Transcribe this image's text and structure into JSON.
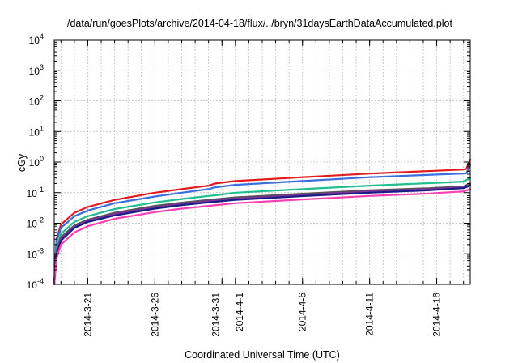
{
  "chart_data": {
    "type": "line",
    "title": "/data/run/goesPlots/archive/2014-04-18/flux/../bryn/31daysEarthDataAccumulated.plot",
    "xlabel": "Coordinated Universal Time (UTC)",
    "ylabel": "cGy",
    "y_scale": "log",
    "ylim": [
      0.0001,
      10000
    ],
    "xlim": [
      "2014-03-18T12:00",
      "2014-04-18T12:00"
    ],
    "grid": true,
    "legend": "none",
    "y_ticks": [
      {
        "base": "10",
        "exp": "-4",
        "value": 0.0001
      },
      {
        "base": "10",
        "exp": "-3",
        "value": 0.001
      },
      {
        "base": "10",
        "exp": "-2",
        "value": 0.01
      },
      {
        "base": "10",
        "exp": "-1",
        "value": 0.1
      },
      {
        "base": "10",
        "exp": "0",
        "value": 1
      },
      {
        "base": "10",
        "exp": "1",
        "value": 10
      },
      {
        "base": "10",
        "exp": "2",
        "value": 100
      },
      {
        "base": "10",
        "exp": "3",
        "value": 1000
      },
      {
        "base": "10",
        "exp": "4",
        "value": 10000
      }
    ],
    "x_ticks": [
      {
        "label": "2014-3-21",
        "x": "2014-03-21"
      },
      {
        "label": "2014-3-26",
        "x": "2014-03-26"
      },
      {
        "label": "2014-3-31",
        "x": "2014-03-31"
      },
      {
        "label": "2014-4-1",
        "x": "2014-04-01"
      },
      {
        "label": "2014-4-6",
        "x": "2014-04-06"
      },
      {
        "label": "2014-4-11",
        "x": "2014-04-11"
      },
      {
        "label": "2014-4-16",
        "x": "2014-04-16"
      }
    ],
    "series": [
      {
        "color": "#e41a1c",
        "points": [
          [
            "2014-03-18T12:00",
            0.0001
          ],
          [
            "2014-03-18T16:00",
            0.003
          ],
          [
            "2014-03-19T00:00",
            0.009
          ],
          [
            "2014-03-20T00:00",
            0.022
          ],
          [
            "2014-03-21T00:00",
            0.034
          ],
          [
            "2014-03-23T00:00",
            0.058
          ],
          [
            "2014-03-26T00:00",
            0.1
          ],
          [
            "2014-03-28T00:00",
            0.13
          ],
          [
            "2014-03-30T00:00",
            0.17
          ],
          [
            "2014-03-30T12:00",
            0.2
          ],
          [
            "2014-04-01T00:00",
            0.24
          ],
          [
            "2014-04-06T00:00",
            0.32
          ],
          [
            "2014-04-11T00:00",
            0.42
          ],
          [
            "2014-04-16T00:00",
            0.52
          ],
          [
            "2014-04-18T00:00",
            0.57
          ],
          [
            "2014-04-18T05:00",
            0.6
          ],
          [
            "2014-04-18T12:00",
            1.2
          ]
        ]
      },
      {
        "color": "#3b6fe0",
        "points": [
          [
            "2014-03-18T12:00",
            0.0001
          ],
          [
            "2014-03-18T16:00",
            0.0025
          ],
          [
            "2014-03-19T00:00",
            0.007
          ],
          [
            "2014-03-20T00:00",
            0.017
          ],
          [
            "2014-03-21T00:00",
            0.026
          ],
          [
            "2014-03-23T00:00",
            0.045
          ],
          [
            "2014-03-26T00:00",
            0.075
          ],
          [
            "2014-03-28T00:00",
            0.1
          ],
          [
            "2014-03-30T00:00",
            0.13
          ],
          [
            "2014-03-30T12:00",
            0.15
          ],
          [
            "2014-04-01T00:00",
            0.18
          ],
          [
            "2014-04-06T00:00",
            0.24
          ],
          [
            "2014-04-11T00:00",
            0.32
          ],
          [
            "2014-04-16T00:00",
            0.39
          ],
          [
            "2014-04-18T00:00",
            0.42
          ],
          [
            "2014-04-18T05:00",
            0.43
          ],
          [
            "2014-04-18T12:00",
            0.8
          ]
        ]
      },
      {
        "color": "#1fbf8f",
        "points": [
          [
            "2014-03-18T12:00",
            0.0001
          ],
          [
            "2014-03-18T16:00",
            0.0015
          ],
          [
            "2014-03-19T00:00",
            0.0045
          ],
          [
            "2014-03-20T00:00",
            0.011
          ],
          [
            "2014-03-21T00:00",
            0.017
          ],
          [
            "2014-03-23T00:00",
            0.029
          ],
          [
            "2014-03-26T00:00",
            0.048
          ],
          [
            "2014-03-28T00:00",
            0.062
          ],
          [
            "2014-03-30T00:00",
            0.078
          ],
          [
            "2014-03-30T12:00",
            0.082
          ],
          [
            "2014-04-01T00:00",
            0.1
          ],
          [
            "2014-04-06T00:00",
            0.13
          ],
          [
            "2014-04-11T00:00",
            0.17
          ],
          [
            "2014-04-16T00:00",
            0.21
          ],
          [
            "2014-04-18T00:00",
            0.23
          ],
          [
            "2014-04-18T12:00",
            0.3
          ]
        ]
      },
      {
        "color": "#555555",
        "points": [
          [
            "2014-03-18T12:00",
            0.0001
          ],
          [
            "2014-03-18T16:00",
            0.0012
          ],
          [
            "2014-03-19T00:00",
            0.0035
          ],
          [
            "2014-03-20T00:00",
            0.0085
          ],
          [
            "2014-03-21T00:00",
            0.013
          ],
          [
            "2014-03-23T00:00",
            0.022
          ],
          [
            "2014-03-26T00:00",
            0.037
          ],
          [
            "2014-03-28T00:00",
            0.047
          ],
          [
            "2014-03-30T00:00",
            0.058
          ],
          [
            "2014-04-01T00:00",
            0.07
          ],
          [
            "2014-04-06T00:00",
            0.092
          ],
          [
            "2014-04-11T00:00",
            0.12
          ],
          [
            "2014-04-15T12:00",
            0.14
          ],
          [
            "2014-04-16T00:00",
            0.145
          ],
          [
            "2014-04-18T00:00",
            0.16
          ],
          [
            "2014-04-18T12:00",
            0.2
          ]
        ]
      },
      {
        "color": "#7b3294",
        "points": [
          [
            "2014-03-18T12:00",
            0.0001
          ],
          [
            "2014-03-18T16:00",
            0.001
          ],
          [
            "2014-03-19T00:00",
            0.003
          ],
          [
            "2014-03-20T00:00",
            0.0075
          ],
          [
            "2014-03-21T00:00",
            0.012
          ],
          [
            "2014-03-23T00:00",
            0.02
          ],
          [
            "2014-03-26T00:00",
            0.033
          ],
          [
            "2014-03-28T00:00",
            0.043
          ],
          [
            "2014-03-30T00:00",
            0.053
          ],
          [
            "2014-04-01T00:00",
            0.064
          ],
          [
            "2014-04-06T00:00",
            0.084
          ],
          [
            "2014-04-11T00:00",
            0.11
          ],
          [
            "2014-04-15T12:00",
            0.13
          ],
          [
            "2014-04-16T00:00",
            0.134
          ],
          [
            "2014-04-18T00:00",
            0.15
          ],
          [
            "2014-04-18T12:00",
            0.18
          ]
        ]
      },
      {
        "color": "#1a1a8a",
        "points": [
          [
            "2014-03-18T12:00",
            0.0001
          ],
          [
            "2014-03-18T16:00",
            0.0009
          ],
          [
            "2014-03-19T00:00",
            0.0027
          ],
          [
            "2014-03-20T00:00",
            0.007
          ],
          [
            "2014-03-21T00:00",
            0.011
          ],
          [
            "2014-03-23T00:00",
            0.018
          ],
          [
            "2014-03-26T00:00",
            0.03
          ],
          [
            "2014-03-28T00:00",
            0.039
          ],
          [
            "2014-03-30T00:00",
            0.048
          ],
          [
            "2014-04-01T00:00",
            0.058
          ],
          [
            "2014-04-06T00:00",
            0.077
          ],
          [
            "2014-04-11T00:00",
            0.1
          ],
          [
            "2014-04-15T12:00",
            0.12
          ],
          [
            "2014-04-16T00:00",
            0.124
          ],
          [
            "2014-04-18T00:00",
            0.14
          ],
          [
            "2014-04-18T12:00",
            0.17
          ]
        ]
      },
      {
        "color": "#ff3fb4",
        "points": [
          [
            "2014-03-18T12:00",
            0.0001
          ],
          [
            "2014-03-18T16:00",
            0.0007
          ],
          [
            "2014-03-19T00:00",
            0.002
          ],
          [
            "2014-03-20T00:00",
            0.005
          ],
          [
            "2014-03-21T00:00",
            0.008
          ],
          [
            "2014-03-23T00:00",
            0.014
          ],
          [
            "2014-03-26T00:00",
            0.023
          ],
          [
            "2014-03-28T00:00",
            0.03
          ],
          [
            "2014-03-30T00:00",
            0.037
          ],
          [
            "2014-04-01T00:00",
            0.045
          ],
          [
            "2014-04-06T00:00",
            0.06
          ],
          [
            "2014-04-11T00:00",
            0.078
          ],
          [
            "2014-04-15T12:00",
            0.094
          ],
          [
            "2014-04-16T00:00",
            0.097
          ],
          [
            "2014-04-18T00:00",
            0.11
          ],
          [
            "2014-04-18T12:00",
            0.13
          ]
        ]
      }
    ]
  }
}
